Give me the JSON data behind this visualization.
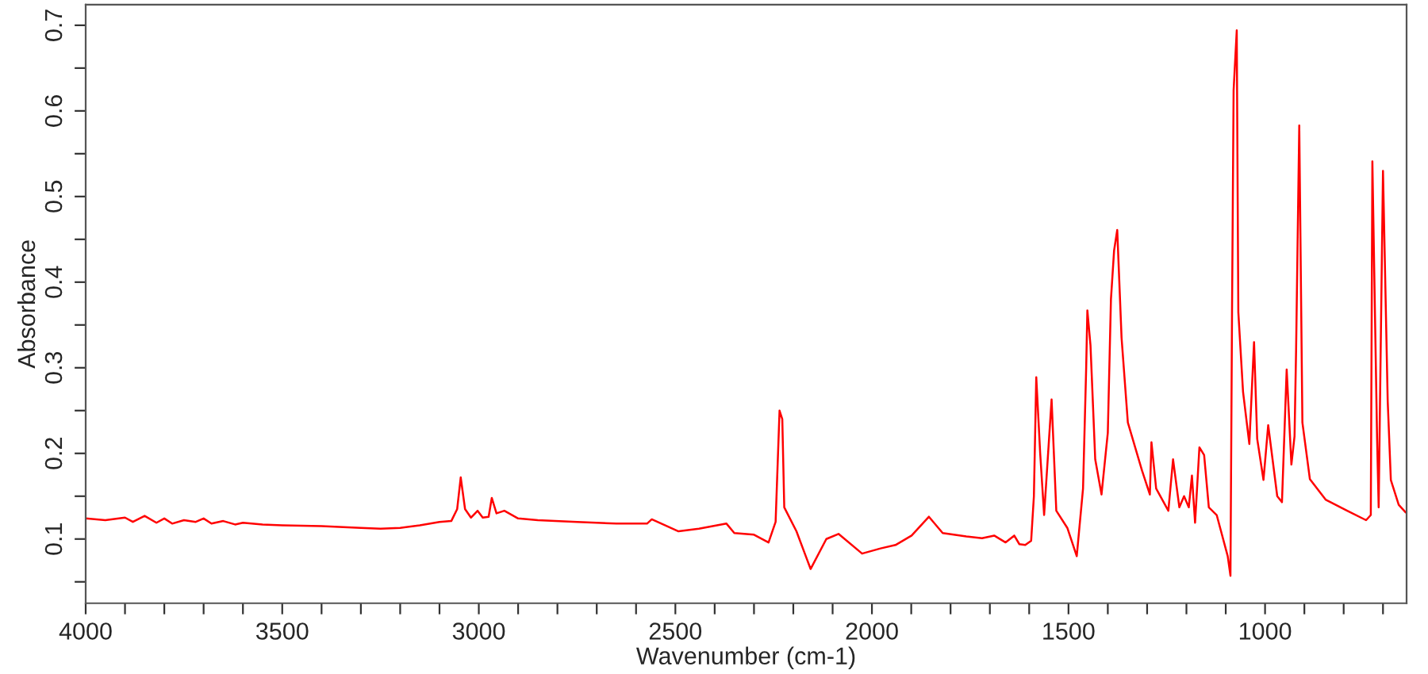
{
  "chart_data": {
    "type": "line",
    "xlabel": "Wavenumber (cm-1)",
    "ylabel": "Absorbance",
    "xlim": [
      4000,
      640
    ],
    "ylim": [
      0.025,
      0.724
    ],
    "grid": false,
    "legend": false,
    "marker": "none",
    "line_style": "solid",
    "xticks": [
      4000,
      {
        "value": 3900,
        "label": null
      },
      {
        "value": 3800,
        "label": null
      },
      {
        "value": 3700,
        "label": null
      },
      {
        "value": 3600,
        "label": null
      },
      3500,
      {
        "value": 3400,
        "label": null
      },
      {
        "value": 3300,
        "label": null
      },
      {
        "value": 3200,
        "label": null
      },
      {
        "value": 3100,
        "label": null
      },
      3000,
      {
        "value": 2900,
        "label": null
      },
      {
        "value": 2800,
        "label": null
      },
      {
        "value": 2700,
        "label": null
      },
      {
        "value": 2600,
        "label": null
      },
      2500,
      {
        "value": 2400,
        "label": null
      },
      {
        "value": 2300,
        "label": null
      },
      {
        "value": 2200,
        "label": null
      },
      {
        "value": 2100,
        "label": null
      },
      2000,
      {
        "value": 1900,
        "label": null
      },
      {
        "value": 1800,
        "label": null
      },
      {
        "value": 1700,
        "label": null
      },
      {
        "value": 1600,
        "label": null
      },
      1500,
      {
        "value": 1400,
        "label": null
      },
      {
        "value": 1300,
        "label": null
      },
      {
        "value": 1200,
        "label": null
      },
      {
        "value": 1100,
        "label": null
      },
      1000,
      {
        "value": 900,
        "label": null
      },
      {
        "value": 800,
        "label": null
      },
      {
        "value": 700,
        "label": null
      }
    ],
    "yticks": [
      {
        "value": 0.05,
        "label": null
      },
      0.1,
      {
        "value": 0.15,
        "label": null
      },
      0.2,
      {
        "value": 0.25,
        "label": null
      },
      0.3,
      {
        "value": 0.35,
        "label": null
      },
      0.4,
      {
        "value": 0.45,
        "label": null
      },
      0.5,
      {
        "value": 0.55,
        "label": null
      },
      0.6,
      {
        "value": 0.65,
        "label": null
      },
      0.7
    ],
    "series": [
      {
        "color": "#ff0000",
        "x": [
          4000,
          3950,
          3900,
          3880,
          3850,
          3820,
          3800,
          3780,
          3750,
          3720,
          3700,
          3680,
          3650,
          3620,
          3600,
          3550,
          3500,
          3400,
          3300,
          3250,
          3200,
          3150,
          3100,
          3070,
          3055,
          3046,
          3035,
          3020,
          3003,
          2990,
          2975,
          2967,
          2955,
          2935,
          2900,
          2850,
          2750,
          2650,
          2572,
          2560,
          2492,
          2440,
          2370,
          2350,
          2300,
          2263,
          2245,
          2235,
          2228,
          2223,
          2192,
          2156,
          2116,
          2085,
          2025,
          1978,
          1940,
          1899,
          1855,
          1820,
          1760,
          1720,
          1689,
          1660,
          1638,
          1625,
          1610,
          1595,
          1588,
          1582,
          1572,
          1562,
          1543,
          1531,
          1503,
          1479,
          1463,
          1455,
          1452,
          1444,
          1432,
          1416,
          1400,
          1392,
          1384,
          1376,
          1365,
          1349,
          1313,
          1293,
          1289,
          1277,
          1246,
          1234,
          1218,
          1206,
          1194,
          1186,
          1178,
          1167,
          1155,
          1143,
          1123,
          1095,
          1088,
          1084,
          1080,
          1072,
          1068,
          1056,
          1040,
          1028,
          1020,
          1004,
          992,
          969,
          957,
          945,
          933,
          925,
          921,
          913,
          905,
          886,
          846,
          791,
          743,
          731,
          727,
          715,
          711,
          700,
          688,
          680,
          660,
          642
        ],
        "values": [
          0.124,
          0.122,
          0.125,
          0.12,
          0.127,
          0.119,
          0.124,
          0.118,
          0.122,
          0.12,
          0.124,
          0.118,
          0.121,
          0.117,
          0.119,
          0.117,
          0.116,
          0.115,
          0.113,
          0.112,
          0.113,
          0.116,
          0.12,
          0.121,
          0.135,
          0.172,
          0.135,
          0.125,
          0.133,
          0.125,
          0.126,
          0.148,
          0.13,
          0.133,
          0.124,
          0.122,
          0.12,
          0.118,
          0.118,
          0.123,
          0.109,
          0.112,
          0.118,
          0.107,
          0.105,
          0.096,
          0.12,
          0.25,
          0.24,
          0.137,
          0.109,
          0.065,
          0.1,
          0.106,
          0.083,
          0.089,
          0.093,
          0.104,
          0.126,
          0.107,
          0.103,
          0.101,
          0.104,
          0.096,
          0.104,
          0.094,
          0.093,
          0.098,
          0.15,
          0.289,
          0.2,
          0.128,
          0.263,
          0.133,
          0.113,
          0.08,
          0.159,
          0.3,
          0.367,
          0.326,
          0.193,
          0.152,
          0.224,
          0.38,
          0.437,
          0.461,
          0.335,
          0.236,
          0.18,
          0.152,
          0.213,
          0.159,
          0.133,
          0.193,
          0.137,
          0.15,
          0.137,
          0.174,
          0.119,
          0.207,
          0.198,
          0.137,
          0.128,
          0.08,
          0.057,
          0.365,
          0.624,
          0.694,
          0.365,
          0.272,
          0.211,
          0.33,
          0.217,
          0.169,
          0.233,
          0.15,
          0.143,
          0.298,
          0.187,
          0.22,
          0.322,
          0.583,
          0.236,
          0.17,
          0.146,
          0.133,
          0.122,
          0.128,
          0.541,
          0.217,
          0.137,
          0.53,
          0.261,
          0.169,
          0.14,
          0.131
        ]
      }
    ]
  }
}
